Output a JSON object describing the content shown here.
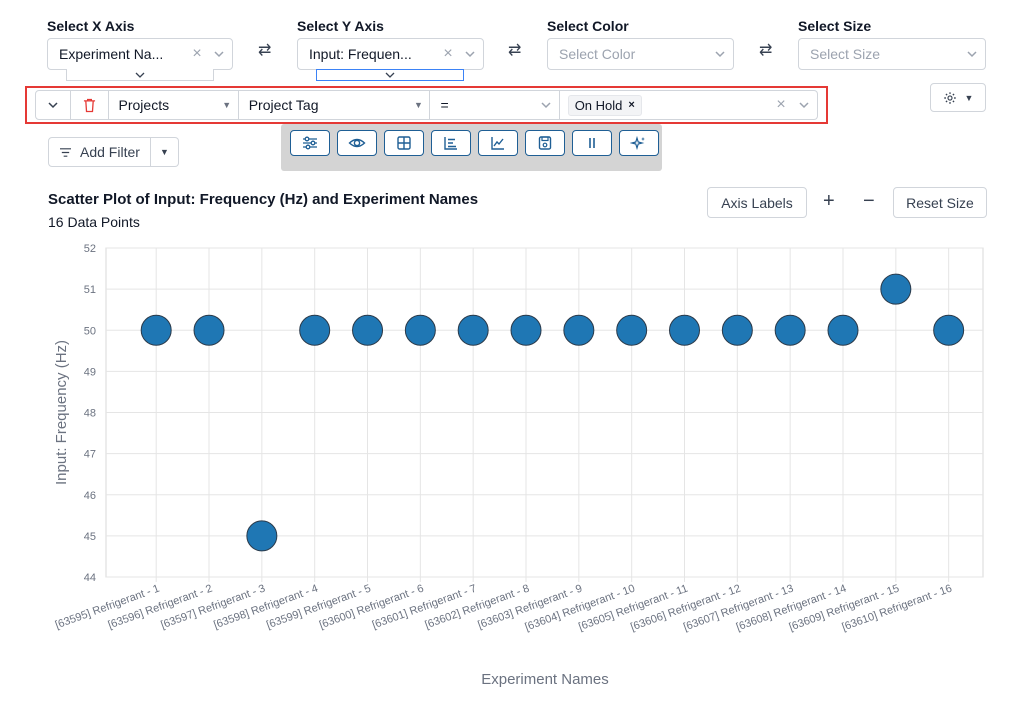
{
  "selectors": {
    "x": {
      "label": "Select X Axis",
      "value": "Experiment Na...",
      "swap": "⇄"
    },
    "y": {
      "label": "Select Y Axis",
      "value": "Input: Frequen...",
      "swap": "⇄"
    },
    "color": {
      "label": "Select Color",
      "placeholder": "Select Color",
      "swap": "⇄"
    },
    "size": {
      "label": "Select Size",
      "placeholder": "Select Size"
    }
  },
  "filter": {
    "field": "Projects",
    "attribute": "Project Tag",
    "operator": "=",
    "tag": "On Hold",
    "tag_remove": "×",
    "clear": "×"
  },
  "add_filter": {
    "label": "Add Filter"
  },
  "toolbar_icons": [
    "sliders-icon",
    "eye-icon",
    "grid-icon",
    "bar-list-icon",
    "line-chart-icon",
    "save-icon",
    "pause-icon",
    "sparkle-icon"
  ],
  "chart_controls": {
    "axis_labels": "Axis Labels",
    "zoom_in": "+",
    "zoom_out": "−",
    "reset": "Reset Size"
  },
  "accent": "#1f77b4",
  "chart_data": {
    "type": "scatter",
    "title": "Scatter Plot of Input: Frequency (Hz) and Experiment Names",
    "subtitle": "16 Data Points",
    "xlabel": "Experiment Names",
    "ylabel": "Input: Frequency (Hz)",
    "ylim": [
      44,
      52
    ],
    "yticks": [
      44,
      45,
      46,
      47,
      48,
      49,
      50,
      51,
      52
    ],
    "grid": true,
    "categories": [
      "[63595] Refrigerant - 1",
      "[63596] Refrigerant - 2",
      "[63597] Refrigerant - 3",
      "[63598] Refrigerant - 4",
      "[63599] Refrigerant - 5",
      "[63600] Refrigerant - 6",
      "[63601] Refrigerant - 7",
      "[63602] Refrigerant - 8",
      "[63603] Refrigerant - 9",
      "[63604] Refrigerant - 10",
      "[63605] Refrigerant - 11",
      "[63606] Refrigerant - 12",
      "[63607] Refrigerant - 13",
      "[63608] Refrigerant - 14",
      "[63609] Refrigerant - 15",
      "[63610] Refrigerant - 16"
    ],
    "values": [
      50,
      50,
      45,
      50,
      50,
      50,
      50,
      50,
      50,
      50,
      50,
      50,
      50,
      50,
      51,
      50
    ]
  }
}
